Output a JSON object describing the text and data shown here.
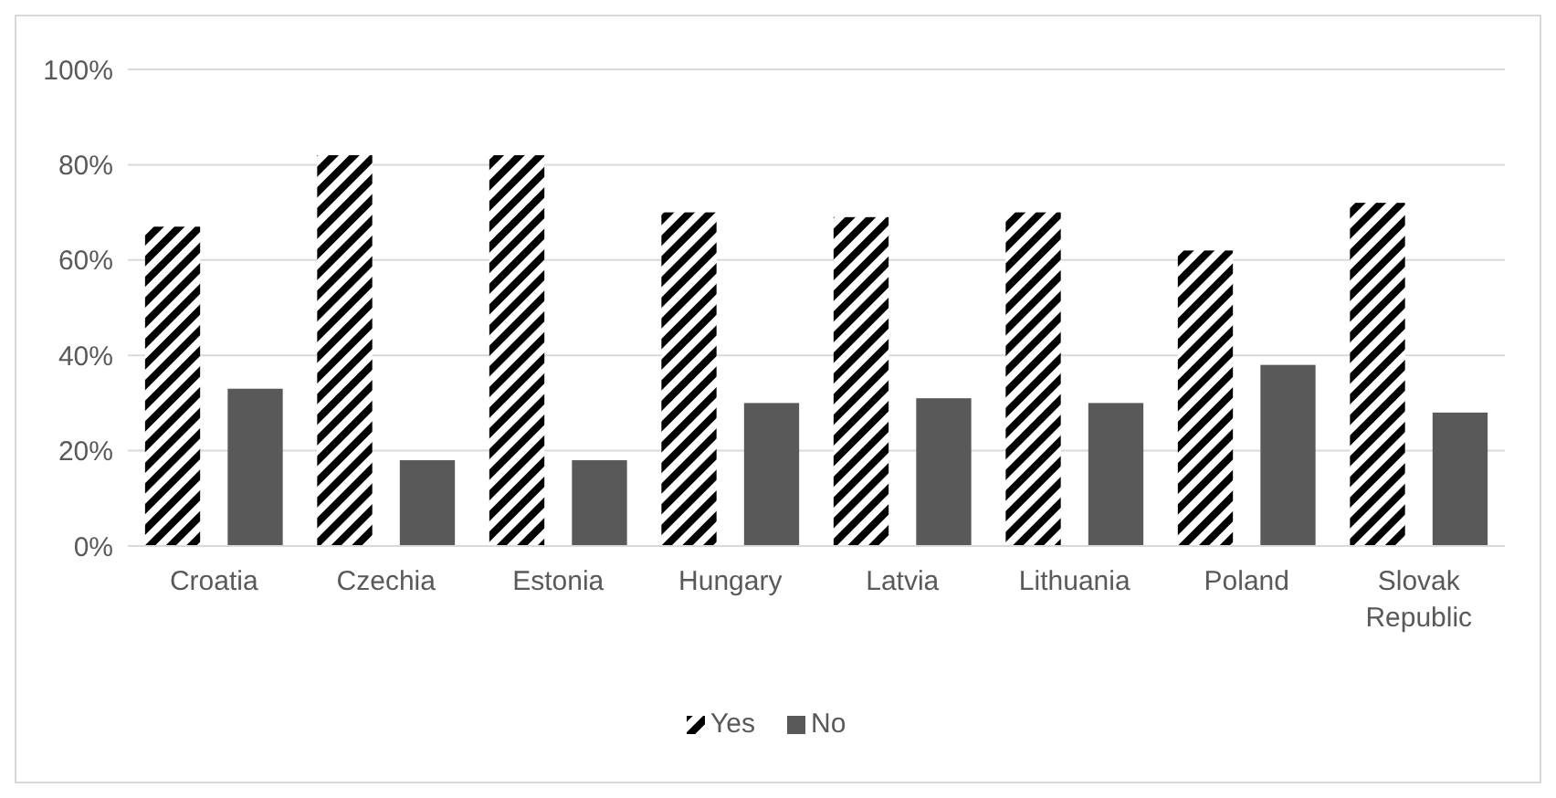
{
  "chart_data": {
    "type": "bar",
    "categories": [
      "Croatia",
      "Czechia",
      "Estonia",
      "Hungary",
      "Latvia",
      "Lithuania",
      "Poland",
      "Slovak Republic"
    ],
    "series": [
      {
        "name": "Yes",
        "color": "#000000",
        "values": [
          67,
          82,
          82,
          70,
          69,
          70,
          62,
          72
        ]
      },
      {
        "name": "No",
        "color": "#595959",
        "values": [
          33,
          18,
          18,
          30,
          31,
          30,
          38,
          28
        ]
      }
    ],
    "ylim": [
      0,
      100
    ],
    "yticks": [
      {
        "value": 0,
        "label": "0%"
      },
      {
        "value": 20,
        "label": "20%"
      },
      {
        "value": 40,
        "label": "40%"
      },
      {
        "value": 60,
        "label": "60%"
      },
      {
        "value": 80,
        "label": "80%"
      },
      {
        "value": 100,
        "label": "100%"
      }
    ],
    "grid": "y",
    "legend": "bottom"
  }
}
